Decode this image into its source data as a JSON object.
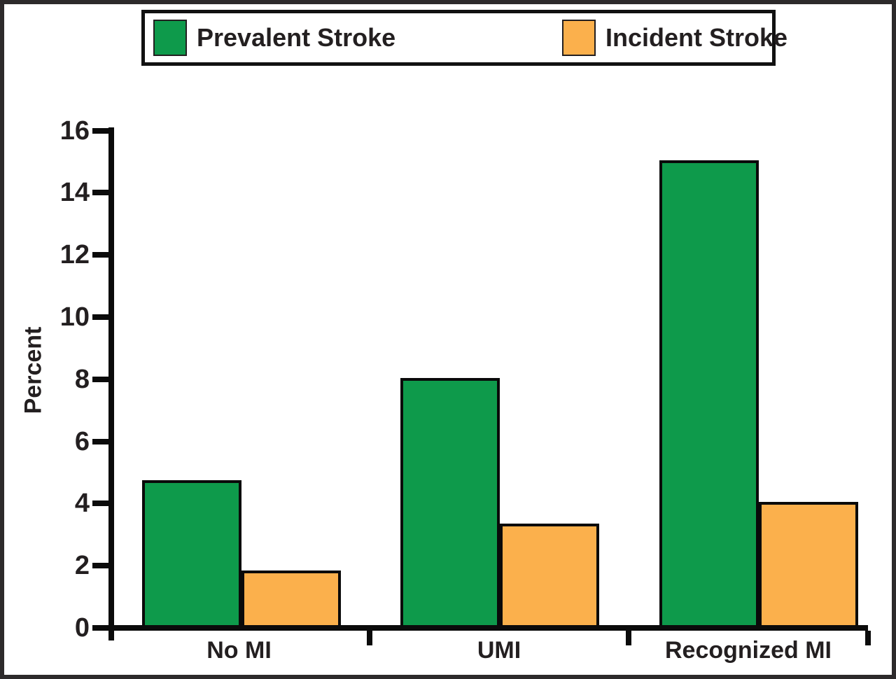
{
  "legend": {
    "items": [
      {
        "label": "Prevalent Stroke",
        "color": "#0e9a4b"
      },
      {
        "label": "Incident Stroke",
        "color": "#fbb04c"
      }
    ]
  },
  "chart_data": {
    "type": "bar",
    "categories": [
      "No MI",
      "UMI",
      "Recognized MI"
    ],
    "series": [
      {
        "name": "Prevalent Stroke",
        "color": "#0e9a4b",
        "values": [
          4.7,
          8.0,
          15.0
        ]
      },
      {
        "name": "Incident Stroke",
        "color": "#fbb04c",
        "values": [
          1.8,
          3.3,
          4.0
        ]
      }
    ],
    "ylabel": "Percent",
    "ylim": [
      0,
      16
    ],
    "yticks": [
      0,
      2,
      4,
      6,
      8,
      10,
      12,
      14,
      16
    ],
    "legend_position": "top",
    "grid": false,
    "bar_border_color": "#0a0a0a",
    "text_color": "#231f20"
  }
}
